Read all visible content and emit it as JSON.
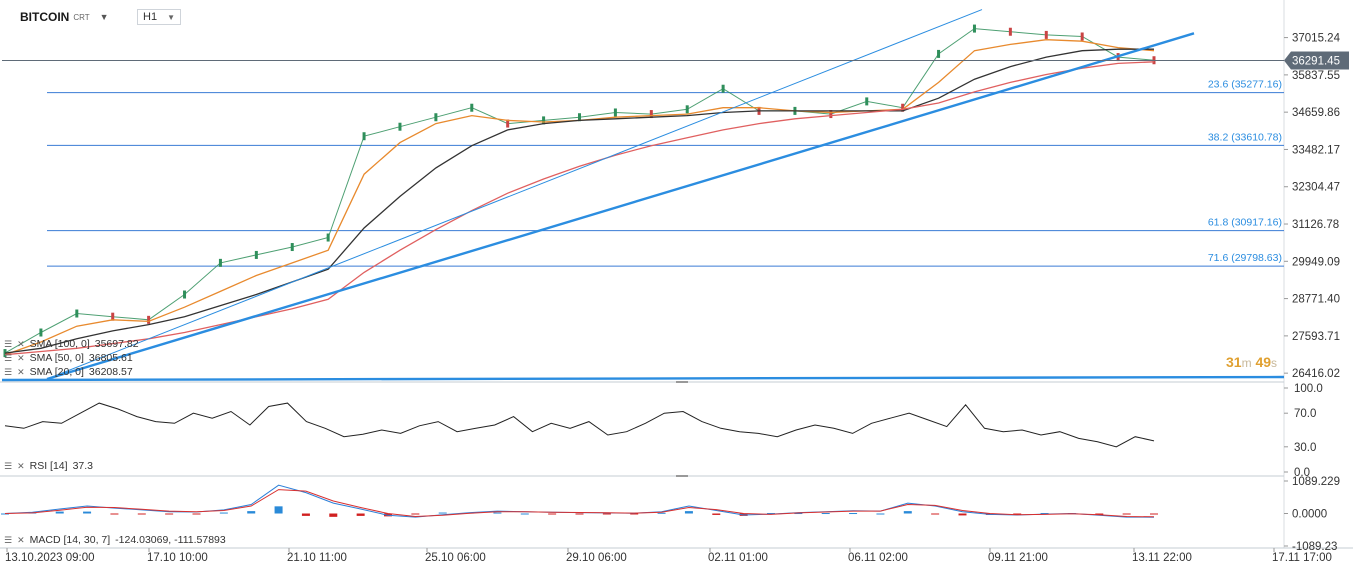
{
  "header": {
    "symbol": "BITCOIN",
    "symbol_sub": "CRT",
    "timeframe": "H1"
  },
  "timer": {
    "minutes": "31",
    "m": "m",
    "seconds": "49",
    "s": "s"
  },
  "colors": {
    "blue_line": "#2b8de0",
    "sma20": "#e88a2e",
    "sma50": "#333333",
    "sma100": "#e06060",
    "macd": "#2b7fd8",
    "signal": "#d83030",
    "hist_pos": "#2a8ad8",
    "hist_neg": "#d02020",
    "price_badge": "#5f6b78"
  },
  "chart_data": [
    {
      "type": "line",
      "panel": "price",
      "instrument": "BITCOIN",
      "timeframe": "H1",
      "ylim": [
        26200,
        37950
      ],
      "y_ticks": [
        37015.24,
        35837.55,
        34659.86,
        33482.17,
        32304.47,
        31126.78,
        29949.09,
        28771.4,
        27593.71,
        26416.02
      ],
      "x_ticks": [
        "13.10.2023  09:00",
        "17.10  10:00",
        "21.10  11:00",
        "25.10  06:00",
        "29.10  06:00",
        "02.11  01:00",
        "06.11  02:00",
        "09.11  21:00",
        "13.11  22:00",
        "17.11  17:00"
      ],
      "current_price": "36291.45",
      "fib_levels": [
        {
          "label": "23.6 (35277.16)",
          "value": 35277.16
        },
        {
          "label": "38.2 (33610.78)",
          "value": 33610.78
        },
        {
          "label": "61.8 (30917.16)",
          "value": 30917.16
        },
        {
          "label": "71.6 (29798.63)",
          "value": 29798.63
        }
      ],
      "series": [
        {
          "name": "Price",
          "values": [
            27050,
            27700,
            28300,
            28200,
            28100,
            28900,
            29900,
            30150,
            30400,
            30700,
            33900,
            34200,
            34500,
            34800,
            34300,
            34400,
            34500,
            34650,
            34600,
            34750,
            35400,
            34700,
            34700,
            34600,
            35000,
            34800,
            36500,
            37300,
            37200,
            37100,
            37050,
            36400,
            36300
          ]
        },
        {
          "name": "SMA [20, 0]",
          "values": [
            27000,
            27400,
            27900,
            28100,
            28050,
            28500,
            29000,
            29500,
            29900,
            30300,
            32700,
            33700,
            34300,
            34550,
            34400,
            34350,
            34400,
            34500,
            34550,
            34600,
            34800,
            34800,
            34700,
            34650,
            34700,
            34750,
            35600,
            36600,
            36800,
            36950,
            36900,
            36700,
            36600
          ]
        },
        {
          "name": "SMA [50, 0]",
          "values": [
            27050,
            27200,
            27500,
            27750,
            27950,
            28200,
            28550,
            28900,
            29300,
            29700,
            31000,
            32000,
            32900,
            33600,
            34100,
            34300,
            34400,
            34450,
            34500,
            34550,
            34650,
            34700,
            34700,
            34700,
            34700,
            34700,
            35100,
            35700,
            36100,
            36400,
            36600,
            36650,
            36650
          ]
        },
        {
          "name": "SMA [100, 0]",
          "values": [
            27000,
            27100,
            27200,
            27350,
            27500,
            27700,
            27950,
            28200,
            28450,
            28750,
            29600,
            30300,
            30950,
            31550,
            32100,
            32550,
            32950,
            33300,
            33600,
            33850,
            34100,
            34300,
            34450,
            34550,
            34650,
            34750,
            34950,
            35300,
            35600,
            35850,
            36050,
            36200,
            36250
          ]
        }
      ],
      "legend": [
        {
          "text": "SMA [100, 0]",
          "value": "35697.82"
        },
        {
          "text": "SMA [50, 0]",
          "value": "36805.61"
        },
        {
          "text": "SMA [20, 0]",
          "value": "36208.57"
        }
      ]
    },
    {
      "type": "line",
      "panel": "rsi",
      "name": "RSI [14]",
      "value": "37.3",
      "ylim": [
        0,
        100
      ],
      "y_ticks": [
        "100.0",
        "70.0",
        "30.0",
        "0.0"
      ],
      "series": [
        {
          "name": "RSI [14]",
          "values": [
            55,
            52,
            60,
            58,
            70,
            82,
            75,
            66,
            60,
            58,
            70,
            64,
            72,
            56,
            78,
            82,
            60,
            52,
            42,
            45,
            50,
            46,
            55,
            60,
            48,
            52,
            56,
            66,
            48,
            58,
            52,
            60,
            44,
            48,
            58,
            70,
            72,
            60,
            52,
            48,
            46,
            42,
            50,
            56,
            52,
            46,
            58,
            64,
            70,
            62,
            54,
            80,
            52,
            48,
            50,
            44,
            48,
            40,
            36,
            30,
            42,
            37
          ]
        }
      ]
    },
    {
      "type": "line",
      "panel": "macd",
      "name": "MACD [14, 30, 7]",
      "values_label": "-124.03069,  -111.57893",
      "ylim": [
        -1089.23,
        1089.229
      ],
      "y_ticks": [
        "1089.229",
        "0.0000",
        "-1089.23"
      ],
      "series": [
        {
          "name": "MACD",
          "values": [
            0,
            40,
            150,
            250,
            180,
            120,
            60,
            50,
            120,
            300,
            950,
            700,
            350,
            150,
            -60,
            -120,
            -40,
            30,
            80,
            60,
            40,
            30,
            20,
            10,
            60,
            250,
            100,
            -50,
            -20,
            30,
            60,
            90,
            80,
            350,
            250,
            60,
            -30,
            -50,
            -20,
            0,
            -60,
            -120,
            -124
          ]
        },
        {
          "name": "Signal",
          "values": [
            0,
            20,
            110,
            210,
            200,
            140,
            80,
            60,
            100,
            250,
            800,
            750,
            420,
            200,
            0,
            -100,
            -60,
            10,
            60,
            60,
            45,
            35,
            25,
            15,
            45,
            200,
            130,
            0,
            -30,
            20,
            50,
            80,
            80,
            300,
            270,
            100,
            0,
            -40,
            -30,
            -10,
            -40,
            -100,
            -112
          ]
        }
      ]
    }
  ]
}
